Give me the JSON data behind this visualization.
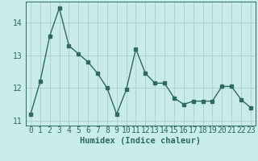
{
  "x": [
    0,
    1,
    2,
    3,
    4,
    5,
    6,
    7,
    8,
    9,
    10,
    11,
    12,
    13,
    14,
    15,
    16,
    17,
    18,
    19,
    20,
    21,
    22,
    23
  ],
  "y": [
    11.2,
    12.2,
    13.6,
    14.45,
    13.3,
    13.05,
    12.8,
    12.45,
    12.0,
    11.2,
    11.95,
    13.2,
    12.45,
    12.15,
    12.15,
    11.7,
    11.5,
    11.6,
    11.6,
    11.6,
    12.05,
    12.05,
    11.65,
    11.4
  ],
  "line_color": "#2e6b5e",
  "marker": "s",
  "marker_size": 2.5,
  "bg_color": "#c8ece8",
  "grid_color": "#b0cccc",
  "xlabel": "Humidex (Indice chaleur)",
  "ylim": [
    10.85,
    14.65
  ],
  "yticks": [
    11,
    12,
    13,
    14
  ],
  "xlim": [
    -0.5,
    23.5
  ],
  "xlabel_fontsize": 7.5,
  "tick_fontsize": 7
}
